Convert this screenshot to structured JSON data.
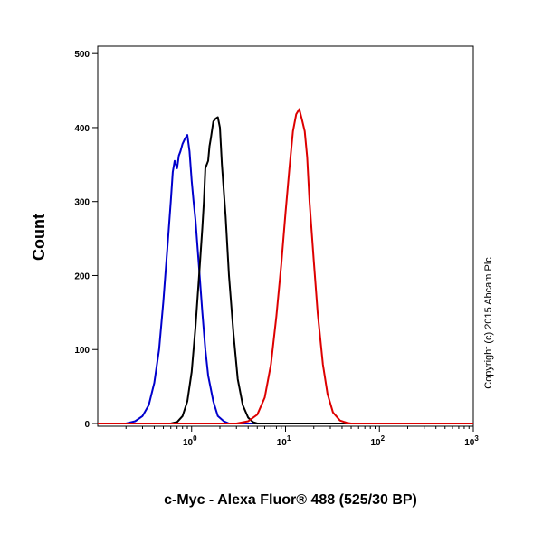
{
  "chart_data": {
    "type": "line",
    "xlabel": "c-Myc - Alexa Fluor® 488 (525/30 BP)",
    "ylabel": "Count",
    "copyright": "Copyright (c) 2015 Abcam Plc",
    "x_scale": "log",
    "xlim": [
      0.1,
      1000
    ],
    "ylim": [
      0,
      510
    ],
    "grid": false,
    "legend": "none",
    "y_ticks": [
      {
        "value": 0,
        "label": "0"
      },
      {
        "value": 100,
        "label": "100"
      },
      {
        "value": 200,
        "label": "200"
      },
      {
        "value": 300,
        "label": "300"
      },
      {
        "value": 400,
        "label": "400"
      },
      {
        "value": 500,
        "label": "500"
      }
    ],
    "x_ticks": [
      {
        "value": 1,
        "base": "10",
        "exp": "0"
      },
      {
        "value": 10,
        "base": "10",
        "exp": "1"
      },
      {
        "value": 100,
        "base": "10",
        "exp": "2"
      },
      {
        "value": 1000,
        "base": "10",
        "exp": "3"
      }
    ],
    "series": [
      {
        "color": "#0000cc",
        "points": [
          [
            0.1,
            0
          ],
          [
            0.2,
            0
          ],
          [
            0.25,
            3
          ],
          [
            0.3,
            10
          ],
          [
            0.35,
            25
          ],
          [
            0.4,
            55
          ],
          [
            0.45,
            100
          ],
          [
            0.5,
            165
          ],
          [
            0.55,
            235
          ],
          [
            0.6,
            300
          ],
          [
            0.63,
            340
          ],
          [
            0.66,
            355
          ],
          [
            0.7,
            345
          ],
          [
            0.73,
            362
          ],
          [
            0.76,
            368
          ],
          [
            0.8,
            378
          ],
          [
            0.85,
            385
          ],
          [
            0.9,
            390
          ],
          [
            0.95,
            368
          ],
          [
            1.0,
            328
          ],
          [
            1.05,
            300
          ],
          [
            1.1,
            275
          ],
          [
            1.2,
            210
          ],
          [
            1.3,
            150
          ],
          [
            1.4,
            100
          ],
          [
            1.5,
            65
          ],
          [
            1.7,
            30
          ],
          [
            1.9,
            10
          ],
          [
            2.2,
            3
          ],
          [
            2.5,
            0
          ],
          [
            1000,
            0
          ]
        ]
      },
      {
        "color": "#000000",
        "points": [
          [
            0.1,
            0
          ],
          [
            0.6,
            0
          ],
          [
            0.7,
            2
          ],
          [
            0.8,
            10
          ],
          [
            0.9,
            30
          ],
          [
            1.0,
            70
          ],
          [
            1.1,
            130
          ],
          [
            1.2,
            200
          ],
          [
            1.3,
            265
          ],
          [
            1.35,
            300
          ],
          [
            1.4,
            345
          ],
          [
            1.5,
            355
          ],
          [
            1.55,
            375
          ],
          [
            1.6,
            385
          ],
          [
            1.7,
            408
          ],
          [
            1.8,
            412
          ],
          [
            1.9,
            414
          ],
          [
            2.0,
            400
          ],
          [
            2.1,
            350
          ],
          [
            2.3,
            280
          ],
          [
            2.5,
            200
          ],
          [
            2.8,
            120
          ],
          [
            3.1,
            60
          ],
          [
            3.5,
            25
          ],
          [
            4.0,
            8
          ],
          [
            4.5,
            2
          ],
          [
            5.0,
            0
          ],
          [
            1000,
            0
          ]
        ]
      },
      {
        "color": "#dd0000",
        "points": [
          [
            0.1,
            0
          ],
          [
            3,
            0
          ],
          [
            4,
            3
          ],
          [
            5,
            12
          ],
          [
            6,
            35
          ],
          [
            7,
            80
          ],
          [
            8,
            145
          ],
          [
            9,
            215
          ],
          [
            10,
            285
          ],
          [
            11,
            345
          ],
          [
            12,
            395
          ],
          [
            13,
            418
          ],
          [
            14,
            425
          ],
          [
            15,
            410
          ],
          [
            16,
            395
          ],
          [
            17,
            360
          ],
          [
            18,
            300
          ],
          [
            20,
            220
          ],
          [
            22,
            150
          ],
          [
            25,
            80
          ],
          [
            28,
            40
          ],
          [
            32,
            15
          ],
          [
            38,
            4
          ],
          [
            45,
            1
          ],
          [
            50,
            0
          ],
          [
            1000,
            0
          ]
        ]
      }
    ]
  }
}
